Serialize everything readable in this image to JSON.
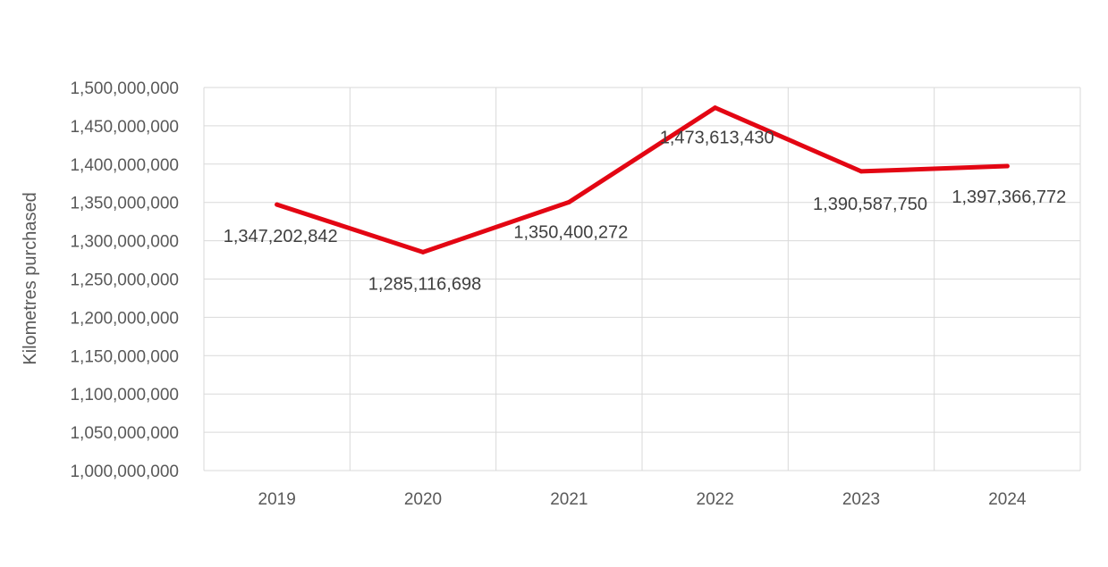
{
  "chart_data": {
    "type": "line",
    "title": "",
    "xlabel": "",
    "ylabel": "Kilometres purchased",
    "categories": [
      "2019",
      "2020",
      "2021",
      "2022",
      "2023",
      "2024"
    ],
    "series": [
      {
        "values": [
          1347202842,
          1285116698,
          1350400272,
          1473613430,
          1390587750,
          1397366772
        ],
        "data_labels": [
          "1,347,202,842",
          "1,285,116,698",
          "1,350,400,272",
          "1,473,613,430",
          "1,390,587,750",
          "1,397,366,772"
        ],
        "color": "#e30613"
      }
    ],
    "ylim": [
      1000000000,
      1500000000
    ],
    "ytick_step": 50000000,
    "ytick_labels": [
      "1,000,000,000",
      "1,050,000,000",
      "1,100,000,000",
      "1,150,000,000",
      "1,200,000,000",
      "1,250,000,000",
      "1,300,000,000",
      "1,350,000,000",
      "1,400,000,000",
      "1,450,000,000",
      "1,500,000,000"
    ],
    "grid": true,
    "legend": "none"
  }
}
